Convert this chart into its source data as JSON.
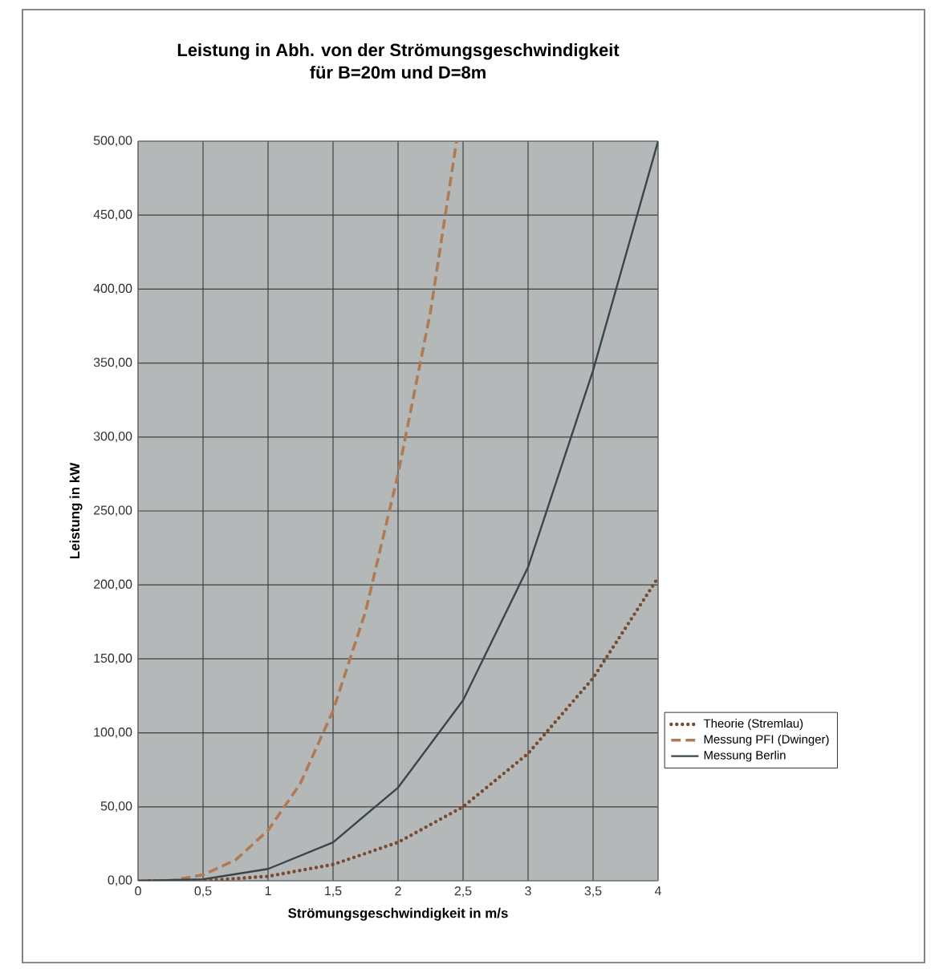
{
  "chart_data": {
    "type": "line",
    "title": "Leistung in Abh. von der Strömungsgeschwindigkeit\nfür B=20m und D=8m",
    "xlabel": "Strömungsgeschwindigkeit in m/s",
    "ylabel": "Leistung in kW",
    "xlim": [
      0,
      4
    ],
    "ylim": [
      0,
      500
    ],
    "xticks": [
      0,
      {
        "value": 0.5,
        "label": "0,5"
      },
      1,
      {
        "value": 1.5,
        "label": "1,5"
      },
      2,
      {
        "value": 2.5,
        "label": "2,5"
      },
      3,
      {
        "value": 3.5,
        "label": "3,5"
      },
      4
    ],
    "yticks": [
      {
        "value": 0,
        "label": "0,00"
      },
      {
        "value": 50,
        "label": "50,00"
      },
      {
        "value": 100,
        "label": "100,00"
      },
      {
        "value": 150,
        "label": "150,00"
      },
      {
        "value": 200,
        "label": "200,00"
      },
      {
        "value": 250,
        "label": "250,00"
      },
      {
        "value": 300,
        "label": "300,00"
      },
      {
        "value": 350,
        "label": "350,00"
      },
      {
        "value": 400,
        "label": "400,00"
      },
      {
        "value": 450,
        "label": "450,00"
      },
      {
        "value": 500,
        "label": "500,00"
      }
    ],
    "grid": true,
    "legend": "right",
    "marker": "none",
    "series": [
      {
        "name": "Theorie (Stremlau)",
        "color": "#7a4a2e",
        "line_style": "dotted",
        "x": [
          0,
          0.5,
          1,
          1.5,
          2,
          2.5,
          3,
          3.5,
          4
        ],
        "values": [
          0,
          0,
          3,
          11,
          26,
          50,
          86,
          137,
          205
        ]
      },
      {
        "name": "Messung PFI (Dwinger)",
        "color": "#b07a55",
        "line_style": "dashed",
        "x": [
          0,
          0.25,
          0.5,
          0.75,
          1,
          1.25,
          1.5,
          1.75,
          2,
          2.25,
          2.45
        ],
        "values": [
          0,
          0,
          4,
          14,
          34,
          66,
          115,
          182,
          275,
          385,
          500
        ]
      },
      {
        "name": "Messung Berlin",
        "color": "#38464c",
        "line_style": "solid",
        "x": [
          0,
          0.5,
          1,
          1.5,
          2,
          2.5,
          3,
          3.5,
          4
        ],
        "values": [
          0,
          1,
          8,
          26,
          63,
          122,
          212,
          345,
          500
        ]
      }
    ]
  }
}
